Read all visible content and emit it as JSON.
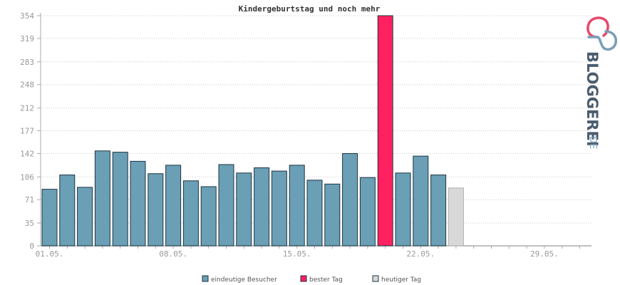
{
  "chart_data": {
    "type": "bar",
    "title": "Kindergeburtstag und noch mehr",
    "ylim": [
      0,
      354
    ],
    "yticks": [
      "0",
      "35",
      "71",
      "106",
      "142",
      "177",
      "212",
      "248",
      "283",
      "319",
      "354"
    ],
    "xticks": [
      {
        "label": "01.05.",
        "day": 1
      },
      {
        "label": "08.05.",
        "day": 8
      },
      {
        "label": "15.05.",
        "day": 15
      },
      {
        "label": "22.05.",
        "day": 22
      },
      {
        "label": "29.05.",
        "day": 29
      }
    ],
    "days": 31,
    "grid": true,
    "legend_position": "bottom",
    "series": [
      {
        "name": "eindeutige Besucher",
        "color": "#6a9fb5",
        "points": [
          {
            "day": 1,
            "value": 87
          },
          {
            "day": 2,
            "value": 109
          },
          {
            "day": 3,
            "value": 90
          },
          {
            "day": 4,
            "value": 146
          },
          {
            "day": 5,
            "value": 144
          },
          {
            "day": 6,
            "value": 130
          },
          {
            "day": 7,
            "value": 111
          },
          {
            "day": 8,
            "value": 124
          },
          {
            "day": 9,
            "value": 100
          },
          {
            "day": 10,
            "value": 91
          },
          {
            "day": 11,
            "value": 125
          },
          {
            "day": 12,
            "value": 112
          },
          {
            "day": 13,
            "value": 120
          },
          {
            "day": 14,
            "value": 115
          },
          {
            "day": 15,
            "value": 124
          },
          {
            "day": 16,
            "value": 101
          },
          {
            "day": 17,
            "value": 95
          },
          {
            "day": 18,
            "value": 142
          },
          {
            "day": 19,
            "value": 105
          },
          {
            "day": 21,
            "value": 112
          },
          {
            "day": 22,
            "value": 138
          },
          {
            "day": 23,
            "value": 109
          }
        ]
      },
      {
        "name": "bester Tag",
        "color": "#ff2060",
        "points": [
          {
            "day": 20,
            "value": 354
          }
        ]
      },
      {
        "name": "heutiger Tag",
        "color": "#d8d8d8",
        "points": [
          {
            "day": 24,
            "value": 89
          }
        ]
      }
    ]
  },
  "logo": {
    "text": "BLOGGEREI",
    "tld": ".DE",
    "colors": {
      "pink": "#e8476a",
      "blue": "#7a9fb5",
      "dark": "#4a5d6e"
    }
  }
}
